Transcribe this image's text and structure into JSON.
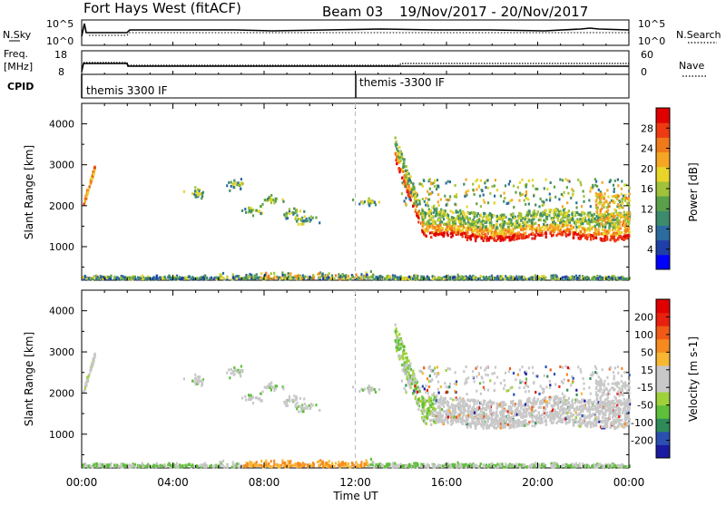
{
  "header": {
    "title": "Fort Hays West (fitACF)",
    "beam": "Beam 03",
    "date_range": "19/Nov/2017 - 20/Nov/2017"
  },
  "noise_panel": {
    "left_label": "N.Sky",
    "right_label": "N.Search",
    "left_ticks": [
      "10^5",
      "10^0"
    ],
    "right_ticks": [
      "10^5",
      "10^0"
    ]
  },
  "freq_panel": {
    "left_label_1": "Freq.",
    "left_label_2": "[MHz]",
    "right_label": "Nave",
    "left_ticks": [
      "18",
      "8"
    ],
    "right_ticks": [
      "60",
      "0"
    ]
  },
  "cpid_panel": {
    "label": "CPID",
    "segments": [
      {
        "start_hour": 0,
        "label": "themis 3300 IF"
      },
      {
        "start_hour": 12,
        "label": "themis -3300 IF"
      }
    ]
  },
  "chart_data": [
    {
      "type": "heatmap",
      "name": "power",
      "ylabel": "Slant Range [km]",
      "xlabel": "",
      "ylim": [
        180,
        4500
      ],
      "yticks": [
        1000,
        2000,
        3000,
        4000
      ],
      "xlim_hours": [
        0,
        24
      ],
      "colorbar": {
        "label": "Power [dB]",
        "ticks": [
          "4",
          "8",
          "12",
          "16",
          "20",
          "24",
          "28"
        ],
        "colors": [
          "#0000ff",
          "#1f3fa8",
          "#2b6ba0",
          "#3d8b6c",
          "#5aa04a",
          "#9fc23a",
          "#e8d52a",
          "#f5a623",
          "#f07a1a",
          "#ee3a12",
          "#e00000"
        ]
      }
    },
    {
      "type": "heatmap",
      "name": "velocity",
      "ylabel": "Slant Range [km]",
      "xlabel": "Time UT",
      "ylim": [
        180,
        4500
      ],
      "yticks": [
        1000,
        2000,
        3000,
        4000
      ],
      "xlim_hours": [
        0,
        24
      ],
      "xtick_labels": [
        "00:00",
        "04:00",
        "08:00",
        "12:00",
        "16:00",
        "20:00",
        "00:00"
      ],
      "colorbar": {
        "label": "Velocity [m s-1]",
        "ticks": [
          "200",
          "100",
          "50",
          "15",
          "-15",
          "-50",
          "-100",
          "-200"
        ],
        "colors": [
          "#1a1aa0",
          "#2a4fb0",
          "#2e8b57",
          "#5fbf3a",
          "#9fd23a",
          "#c8c8c8",
          "#c8c8c8",
          "#f7b733",
          "#f58a1f",
          "#f05a16",
          "#e8200e",
          "#e00000"
        ]
      }
    }
  ]
}
